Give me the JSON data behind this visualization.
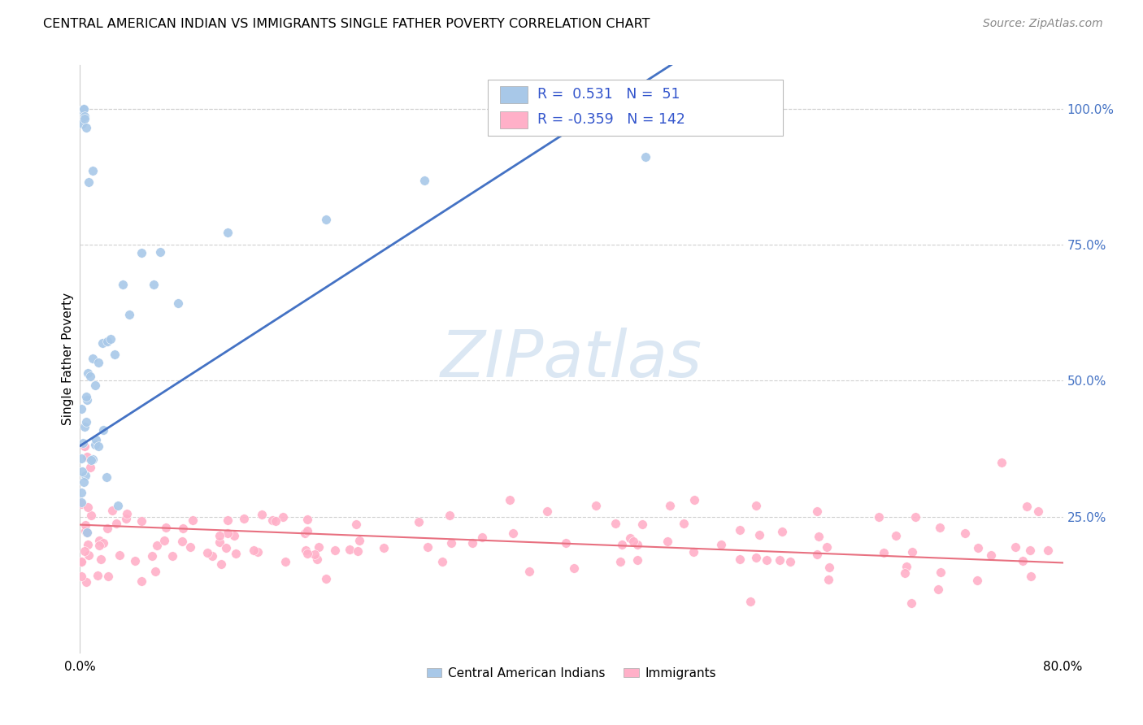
{
  "title": "CENTRAL AMERICAN INDIAN VS IMMIGRANTS SINGLE FATHER POVERTY CORRELATION CHART",
  "source": "Source: ZipAtlas.com",
  "ylabel": "Single Father Poverty",
  "right_yticks": [
    "100.0%",
    "75.0%",
    "50.0%",
    "25.0%"
  ],
  "right_ytick_vals": [
    1.0,
    0.75,
    0.5,
    0.25
  ],
  "legend_label1": "Central American Indians",
  "legend_label2": "Immigrants",
  "r1": 0.531,
  "n1": 51,
  "r2": -0.359,
  "n2": 142,
  "color_blue": "#a8c8e8",
  "color_pink": "#ffb0c8",
  "line_blue": "#4472c4",
  "line_pink": "#e87080",
  "background_color": "#ffffff"
}
